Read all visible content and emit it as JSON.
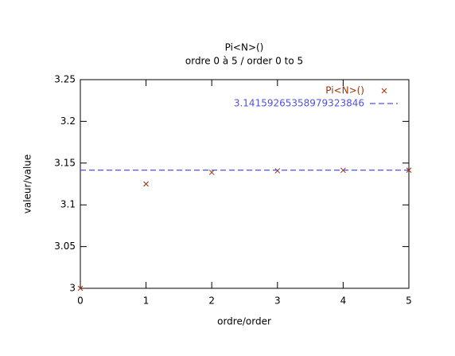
{
  "chart_data": {
    "type": "scatter",
    "title": "Pi<N>()",
    "subtitle": "ordre 0 à 5 / order 0 to 5",
    "xlabel": "ordre/order",
    "ylabel": "valeur/value",
    "xlim": [
      0,
      5
    ],
    "xticks": [
      0,
      1,
      2,
      3,
      4,
      5
    ],
    "ylim": [
      3,
      3.25
    ],
    "yticks": [
      3,
      3.05,
      3.1,
      3.15,
      3.2,
      3.25
    ],
    "legend": "top-right",
    "series": [
      {
        "name": "Pi<N>()",
        "color": "#a0300a",
        "style": "points",
        "x": [
          0,
          1,
          2,
          3,
          4,
          5
        ],
        "values": [
          3,
          3.125,
          3.1389,
          3.1408,
          3.1414,
          3.1416
        ]
      },
      {
        "name": "3.14159265358979323846",
        "color": "#5050f0",
        "style": "dashed",
        "x": [
          0,
          5
        ],
        "values": [
          3.141592653589793,
          3.141592653589793
        ]
      }
    ]
  }
}
